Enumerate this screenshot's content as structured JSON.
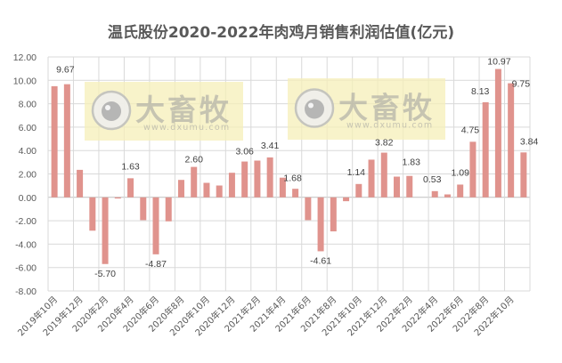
{
  "chart_data": {
    "type": "bar",
    "title": "温氏股份2020-2022年肉鸡月销售利润估值(亿元)",
    "xlabel": "",
    "ylabel": "",
    "ylim": [
      -8,
      12
    ],
    "yticks": [
      "12.00",
      "10.00",
      "8.00",
      "6.00",
      "4.00",
      "2.00",
      "0.00",
      "-2.00",
      "-4.00",
      "-6.00",
      "-8.00"
    ],
    "grid": true,
    "legend": "none",
    "bar_color": "#E0938D",
    "categories": [
      "2019年10月",
      "2019年11月",
      "2019年12月",
      "2020年1月",
      "2020年2月",
      "2020年3月",
      "2020年4月",
      "2020年5月",
      "2020年6月",
      "2020年7月",
      "2020年8月",
      "2020年9月",
      "2020年10月",
      "2020年11月",
      "2020年12月",
      "2021年1月",
      "2021年2月",
      "2021年3月",
      "2021年4月",
      "2021年5月",
      "2021年6月",
      "2021年7月",
      "2021年8月",
      "2021年9月",
      "2021年10月",
      "2021年11月",
      "2021年12月",
      "2022年1月",
      "2022年2月",
      "2022年3月",
      "2022年4月",
      "2022年5月",
      "2022年6月",
      "2022年7月",
      "2022年8月",
      "2022年9月",
      "2022年10月",
      "2022年11月"
    ],
    "visible_xticks": [
      "2019年10月",
      "2019年12月",
      "2020年2月",
      "2020年4月",
      "2020年6月",
      "2020年8月",
      "2020年10月",
      "2020年12月",
      "2021年2月",
      "2021年4月",
      "2021年6月",
      "2021年8月",
      "2021年10月",
      "2021年12月",
      "2022年2月",
      "2022年4月",
      "2022年6月",
      "2022年8月",
      "2022年10月"
    ],
    "values": [
      9.5,
      9.67,
      2.35,
      -2.85,
      -5.7,
      -0.1,
      1.63,
      -1.95,
      -4.87,
      -2.05,
      1.49,
      2.6,
      1.24,
      1.01,
      2.1,
      3.06,
      3.14,
      3.41,
      1.68,
      0.73,
      -1.95,
      -4.61,
      -2.91,
      -0.33,
      1.14,
      3.22,
      3.82,
      1.77,
      1.83,
      0,
      0.53,
      0.25,
      1.09,
      4.75,
      8.13,
      10.97,
      9.75,
      3.84
    ],
    "data_labels": {
      "1": "9.67",
      "4": "-5.70",
      "6": "1.63",
      "8": "-4.87",
      "11": "2.60",
      "15": "3.06",
      "17": "3.41",
      "18": "1.68",
      "21": "-4.61",
      "24": "1.14",
      "26": "3.82",
      "28": "1.83",
      "30": "0.53",
      "32": "1.09",
      "33": "4.75",
      "34": "8.13",
      "35": "10.97",
      "36": "9.75",
      "37": "3.84"
    }
  },
  "watermark": {
    "brand": "大畜牧",
    "url": "www.dxumu.com"
  }
}
